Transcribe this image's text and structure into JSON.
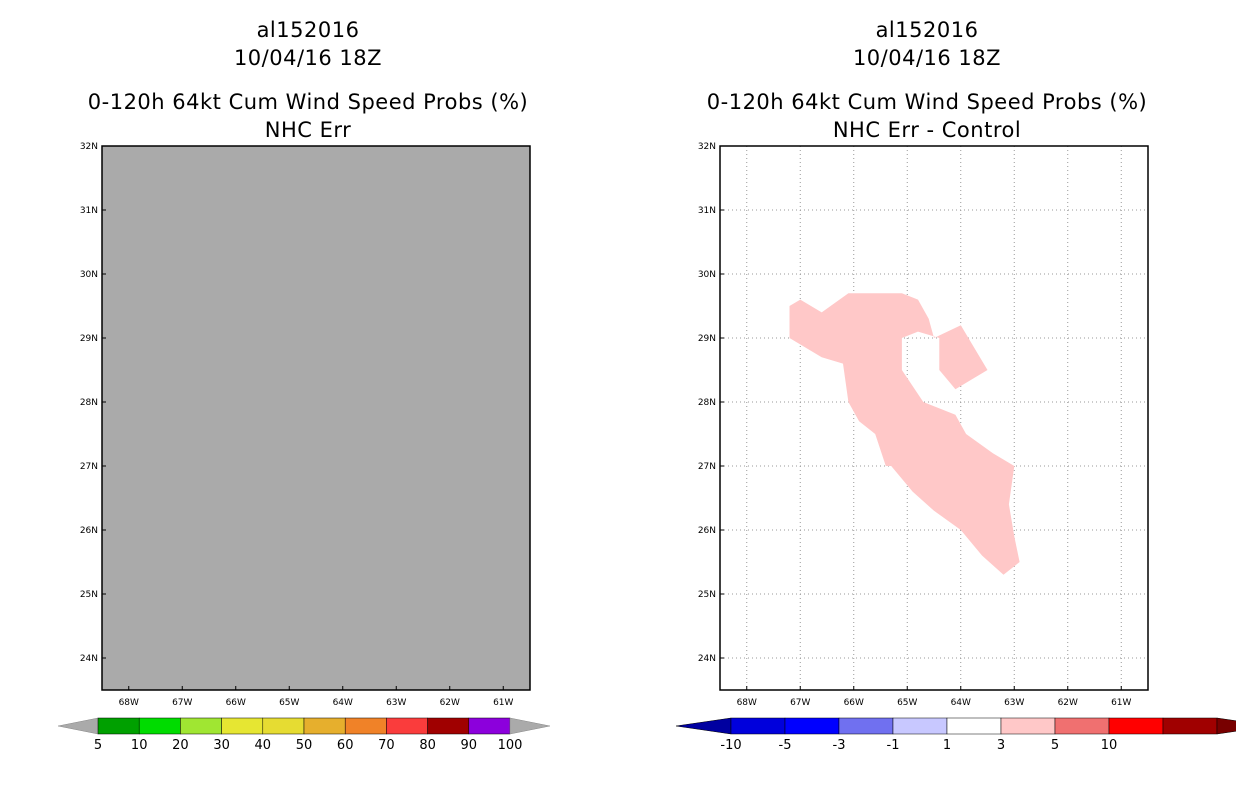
{
  "chart_data": [
    {
      "type": "heatmap",
      "storm_id": "al152016",
      "datetime": "10/04/16 18Z",
      "title": "0-120h 64kt Cum Wind Speed Probs (%)",
      "subtitle": "NHC Err",
      "x_ticks": [
        "68W",
        "67W",
        "66W",
        "65W",
        "64W",
        "63W",
        "62W",
        "61W"
      ],
      "y_ticks": [
        "32N",
        "31N",
        "30N",
        "29N",
        "28N",
        "27N",
        "26N",
        "25N",
        "24N"
      ],
      "xlim": [
        -68.5,
        -60.5
      ],
      "ylim": [
        23.5,
        32
      ],
      "field_fill": "#aaaaaa",
      "grid": false,
      "colorbar": {
        "labels": [
          "5",
          "10",
          "20",
          "30",
          "40",
          "50",
          "60",
          "70",
          "80",
          "90",
          "100"
        ],
        "colors": [
          "#00a000",
          "#00dc00",
          "#a0e632",
          "#e6e632",
          "#e6dc32",
          "#e6af2d",
          "#f08228",
          "#fa3c3c",
          "#a00000",
          "#8c00dc"
        ],
        "end_color": "#aaaaaa"
      }
    },
    {
      "type": "heatmap",
      "storm_id": "al152016",
      "datetime": "10/04/16 18Z",
      "title": "0-120h 64kt Cum Wind Speed Probs (%)",
      "subtitle": "NHC Err - Control",
      "x_ticks": [
        "68W",
        "67W",
        "66W",
        "65W",
        "64W",
        "63W",
        "62W",
        "61W"
      ],
      "y_ticks": [
        "32N",
        "31N",
        "30N",
        "29N",
        "28N",
        "27N",
        "26N",
        "25N",
        "24N"
      ],
      "xlim": [
        -68.5,
        -60.5
      ],
      "ylim": [
        23.5,
        32
      ],
      "grid": true,
      "region_1_to_3": {
        "color": "#ffc8c8",
        "outline_lonlat": [
          [
            -67.2,
            29.5
          ],
          [
            -67.0,
            29.6
          ],
          [
            -66.6,
            29.4
          ],
          [
            -66.1,
            29.7
          ],
          [
            -65.1,
            29.7
          ],
          [
            -64.8,
            29.6
          ],
          [
            -64.6,
            29.3
          ],
          [
            -64.5,
            29.0
          ],
          [
            -64.0,
            29.2
          ],
          [
            -63.5,
            28.5
          ],
          [
            -64.1,
            28.2
          ],
          [
            -64.4,
            28.5
          ],
          [
            -64.4,
            29.0
          ],
          [
            -64.8,
            29.1
          ],
          [
            -65.1,
            29.0
          ],
          [
            -65.1,
            28.5
          ],
          [
            -64.7,
            28.0
          ],
          [
            -64.1,
            27.8
          ],
          [
            -63.9,
            27.5
          ],
          [
            -63.4,
            27.2
          ],
          [
            -63.0,
            27.0
          ],
          [
            -63.1,
            26.4
          ],
          [
            -63.0,
            25.9
          ],
          [
            -62.9,
            25.5
          ],
          [
            -63.2,
            25.3
          ],
          [
            -63.6,
            25.6
          ],
          [
            -64.0,
            26.0
          ],
          [
            -64.5,
            26.3
          ],
          [
            -64.9,
            26.6
          ],
          [
            -65.3,
            27.0
          ],
          [
            -65.4,
            27.0
          ],
          [
            -65.6,
            27.5
          ],
          [
            -65.9,
            27.7
          ],
          [
            -66.1,
            28.0
          ],
          [
            -66.2,
            28.6
          ],
          [
            -66.6,
            28.7
          ],
          [
            -67.2,
            29.0
          ]
        ]
      },
      "colorbar": {
        "labels": [
          "-10",
          "-5",
          "-3",
          "-1",
          "1",
          "3",
          "5",
          "10"
        ],
        "colors": [
          "#0000dc",
          "#0000ff",
          "#7070f0",
          "#c8c8ff",
          "#ffffff",
          "#ffc8c8",
          "#f07070",
          "#ff0000",
          "#a00000"
        ],
        "low_end_color": "#0000a0",
        "high_end_color": "#780000"
      }
    }
  ]
}
